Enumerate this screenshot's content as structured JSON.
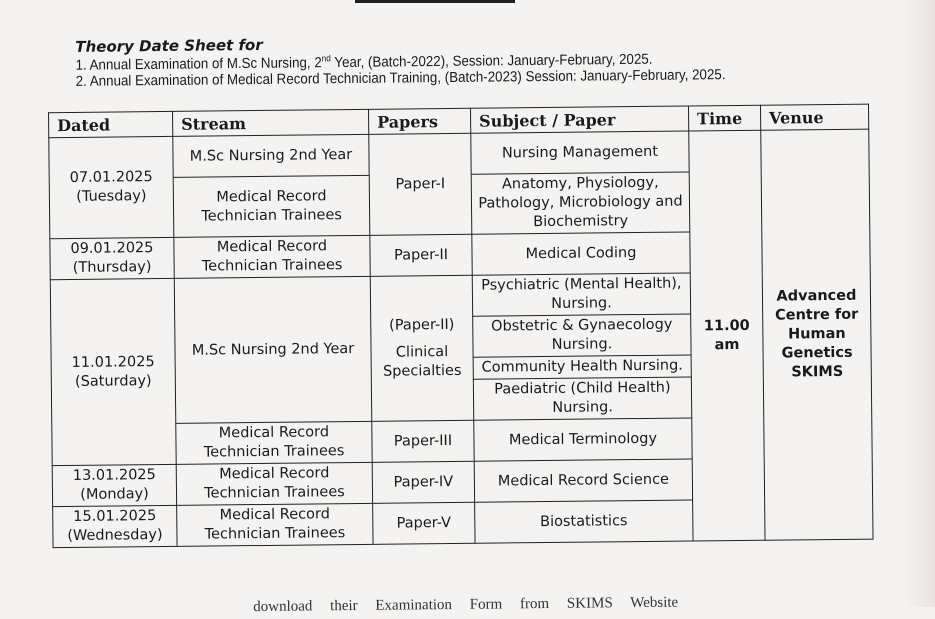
{
  "heading": "Theory Date Sheet for",
  "lines": [
    {
      "pre": "1. Annual Examination of M.Sc Nursing, 2",
      "sup": "nd",
      "post": " Year, (Batch-2022), Session: January-February, 2025."
    },
    {
      "text": "2. Annual Examination of Medical Record Technician Training, (Batch-2023) Session: January-February, 2025."
    }
  ],
  "table": {
    "headers": [
      "Dated",
      "Stream",
      "Papers",
      "Subject / Paper",
      "Time",
      "Venue"
    ],
    "time": "11.00 am",
    "venue": "Advanced Centre for Human Genetics SKIMS",
    "rows": {
      "d1": {
        "date": "07.01.2025",
        "day": "(Tuesday)",
        "stream_a": "M.Sc Nursing 2nd Year",
        "stream_b": "Medical Record Technician Trainees",
        "paper": "Paper-I",
        "subject_a": "Nursing Management",
        "subject_b": "Anatomy, Physiology, Pathology, Microbiology and Biochemistry"
      },
      "d2": {
        "date": "09.01.2025",
        "day": "(Thursday)",
        "stream": "Medical Record Technician Trainees",
        "paper": "Paper-II",
        "subject": "Medical Coding"
      },
      "d3": {
        "date": "11.01.2025",
        "day": "(Saturday)",
        "stream_a": "M.Sc Nursing 2nd Year",
        "paper_a": "(Paper-II)",
        "paper_a2": "Clinical Specialties",
        "subjects": [
          "Psychiatric (Mental Health), Nursing.",
          "Obstetric & Gynaecology Nursing.",
          "Community Health Nursing.",
          "Paediatric (Child Health) Nursing."
        ],
        "stream_b": "Medical Record Technician Trainees",
        "paper_b": "Paper-III",
        "subject_b": "Medical Terminology"
      },
      "d4": {
        "date": "13.01.2025",
        "day": "(Monday)",
        "stream": "Medical Record Technician Trainees",
        "paper": "Paper-IV",
        "subject": "Medical Record Science"
      },
      "d5": {
        "date": "15.01.2025",
        "day": "(Wednesday)",
        "stream": "Medical Record Technician Trainees",
        "paper": "Paper-V",
        "subject": "Biostatistics"
      }
    }
  },
  "footer_note": "download their Examination Form from SKIMS Website"
}
